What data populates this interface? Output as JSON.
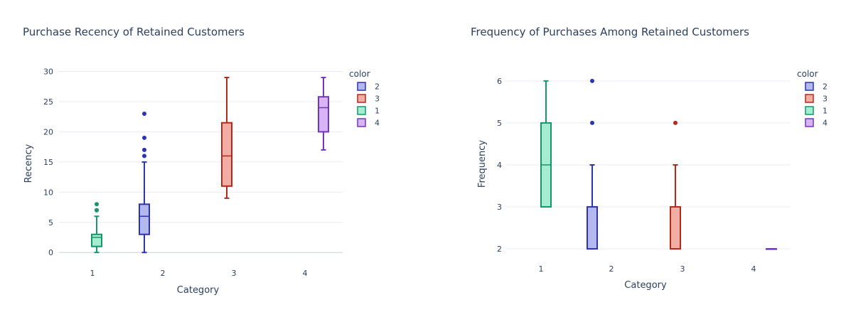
{
  "chart_data": [
    {
      "type": "box",
      "title": "Purchase Recency of Retained Customers",
      "xlabel": "Category",
      "ylabel": "Recency",
      "categories": [
        "1",
        "2",
        "3",
        "4"
      ],
      "ylim": [
        -0.8,
        30.3
      ],
      "yticks": [
        0,
        5,
        10,
        15,
        20,
        25,
        30
      ],
      "legend_title": "color",
      "legend_position": "top-right",
      "grid": true,
      "series": [
        {
          "name": "2",
          "category": "2",
          "color": "#2c34b4",
          "fill": "#b3b8ee",
          "min": 0,
          "q1": 3,
          "median": 6,
          "q3": 8,
          "max": 15,
          "outliers": [
            16,
            17,
            19,
            23
          ]
        },
        {
          "name": "3",
          "category": "3",
          "color": "#b5291c",
          "fill": "#f2ada4",
          "min": 9,
          "q1": 11,
          "median": 16,
          "q3": 21.5,
          "max": 29,
          "outliers": []
        },
        {
          "name": "1",
          "category": "1",
          "color": "#13976b",
          "fill": "#a5ecd1",
          "min": 0,
          "q1": 1,
          "median": 2.5,
          "q3": 3,
          "max": 6,
          "outliers": [
            7,
            7,
            8
          ]
        },
        {
          "name": "4",
          "category": "4",
          "color": "#7435c0",
          "fill": "#d7b4f5",
          "min": 17,
          "q1": 20,
          "median": 24,
          "q3": 25.8,
          "max": 29,
          "outliers": []
        }
      ]
    },
    {
      "type": "box",
      "title": "Frequency of Purchases Among Retained Customers",
      "xlabel": "Category",
      "ylabel": "Frequency",
      "categories": [
        "1",
        "2",
        "3",
        "4"
      ],
      "ylim": [
        1.9,
        6.15
      ],
      "yticks": [
        2,
        3,
        4,
        5,
        6
      ],
      "legend_title": "color",
      "legend_position": "top-right",
      "grid": true,
      "series": [
        {
          "name": "2",
          "category": "2",
          "color": "#2c34b4",
          "fill": "#b3b8ee",
          "min": 2,
          "q1": 2,
          "median": 2,
          "q3": 3,
          "max": 4,
          "outliers": [
            5,
            6
          ]
        },
        {
          "name": "3",
          "category": "3",
          "color": "#b5291c",
          "fill": "#f2ada4",
          "min": 2,
          "q1": 2,
          "median": 2,
          "q3": 3,
          "max": 4,
          "outliers": [
            5
          ]
        },
        {
          "name": "1",
          "category": "1",
          "color": "#13976b",
          "fill": "#a5ecd1",
          "min": 3,
          "q1": 3,
          "median": 4,
          "q3": 5,
          "max": 6,
          "outliers": []
        },
        {
          "name": "4",
          "category": "4",
          "color": "#7435c0",
          "fill": "#d7b4f5",
          "min": 2,
          "q1": 2,
          "median": 2,
          "q3": 2,
          "max": 2,
          "outliers": []
        }
      ]
    }
  ]
}
